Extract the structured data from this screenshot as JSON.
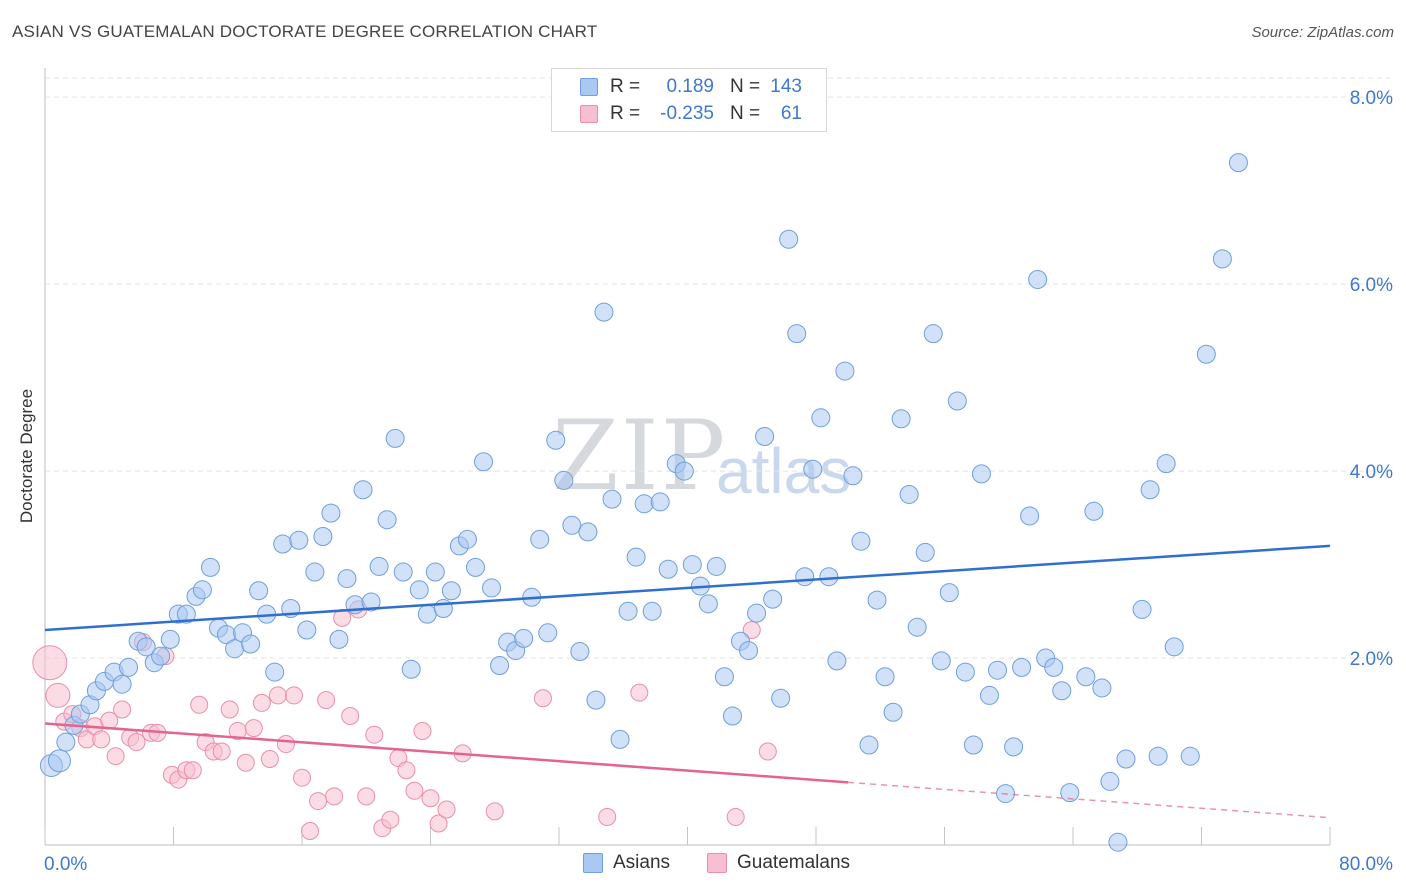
{
  "title": "ASIAN VS GUATEMALAN DOCTORATE DEGREE CORRELATION CHART",
  "source": "Source: ZipAtlas.com",
  "watermark": {
    "zip": "ZIP",
    "atlas": "atlas"
  },
  "legend": {
    "rows": [
      {
        "r_label": "R =",
        "r_value": "0.189",
        "n_label": "N =",
        "n_value": "143",
        "color": "#a9c8f2",
        "stroke": "#6a9ce0"
      },
      {
        "r_label": "R =",
        "r_value": "-0.235",
        "n_label": "N =",
        "n_value": "61",
        "color": "#f7bfd0",
        "stroke": "#e98aa8"
      }
    ]
  },
  "bottom_legend": {
    "series1": "Asians",
    "series2": "Guatemalans"
  },
  "chart_data": {
    "type": "scatter",
    "title": "ASIAN VS GUATEMALAN DOCTORATE DEGREE CORRELATION CHART",
    "xlabel": "",
    "ylabel": "Doctorate Degree",
    "xlim": [
      0,
      80
    ],
    "ylim": [
      0,
      8
    ],
    "x_tick_labels": [
      "0.0%",
      "80.0%"
    ],
    "y_tick_labels": [
      "2.0%",
      "4.0%",
      "6.0%",
      "8.0%"
    ],
    "y_ticks": [
      2,
      4,
      6,
      8
    ],
    "grid": true,
    "legend_position": "top-center",
    "colors": {
      "asians": "#a9c8f2",
      "asians_stroke": "#6f9fdc",
      "asians_line": "#2f6fcf",
      "guatemalans": "#f7bfd0",
      "guatemalans_stroke": "#e88fac",
      "guatemalans_line": "#e4648f",
      "tick_text": "#3f78d0"
    },
    "series": [
      {
        "name": "Asians",
        "trend": {
          "x": [
            0,
            80
          ],
          "y": [
            2.3,
            3.2
          ]
        },
        "points": [
          [
            0.4,
            0.85
          ],
          [
            0.9,
            0.9
          ],
          [
            1.3,
            1.1
          ],
          [
            1.8,
            1.28
          ],
          [
            2.2,
            1.4
          ],
          [
            2.8,
            1.5
          ],
          [
            3.2,
            1.65
          ],
          [
            3.7,
            1.75
          ],
          [
            4.3,
            1.85
          ],
          [
            4.8,
            1.72
          ],
          [
            5.2,
            1.9
          ],
          [
            5.8,
            2.18
          ],
          [
            6.3,
            2.12
          ],
          [
            6.8,
            1.95
          ],
          [
            7.2,
            2.02
          ],
          [
            7.8,
            2.2
          ],
          [
            8.3,
            2.47
          ],
          [
            8.8,
            2.47
          ],
          [
            9.4,
            2.66
          ],
          [
            9.8,
            2.73
          ],
          [
            10.3,
            2.97
          ],
          [
            10.8,
            2.32
          ],
          [
            11.3,
            2.25
          ],
          [
            11.8,
            2.1
          ],
          [
            12.3,
            2.27
          ],
          [
            12.8,
            2.15
          ],
          [
            13.3,
            2.72
          ],
          [
            13.8,
            2.47
          ],
          [
            14.3,
            1.85
          ],
          [
            14.8,
            3.22
          ],
          [
            15.3,
            2.53
          ],
          [
            15.8,
            3.26
          ],
          [
            16.3,
            2.3
          ],
          [
            16.8,
            2.92
          ],
          [
            17.3,
            3.3
          ],
          [
            17.8,
            3.55
          ],
          [
            18.3,
            2.2
          ],
          [
            18.8,
            2.85
          ],
          [
            19.3,
            2.57
          ],
          [
            19.8,
            3.8
          ],
          [
            20.3,
            2.6
          ],
          [
            20.8,
            2.98
          ],
          [
            21.3,
            3.48
          ],
          [
            21.8,
            4.35
          ],
          [
            22.3,
            2.92
          ],
          [
            22.8,
            1.88
          ],
          [
            23.3,
            2.73
          ],
          [
            23.8,
            2.47
          ],
          [
            24.3,
            2.92
          ],
          [
            24.8,
            2.53
          ],
          [
            25.3,
            2.72
          ],
          [
            25.8,
            3.2
          ],
          [
            26.3,
            3.27
          ],
          [
            26.8,
            2.97
          ],
          [
            27.3,
            4.1
          ],
          [
            27.8,
            2.75
          ],
          [
            28.3,
            1.92
          ],
          [
            28.8,
            2.17
          ],
          [
            29.3,
            2.08
          ],
          [
            29.8,
            2.21
          ],
          [
            30.3,
            2.65
          ],
          [
            30.8,
            3.27
          ],
          [
            31.3,
            2.27
          ],
          [
            31.8,
            4.33
          ],
          [
            32.3,
            3.9
          ],
          [
            32.8,
            3.42
          ],
          [
            33.3,
            2.07
          ],
          [
            33.8,
            3.35
          ],
          [
            34.3,
            1.55
          ],
          [
            34.8,
            5.7
          ],
          [
            35.3,
            3.7
          ],
          [
            35.8,
            1.13
          ],
          [
            36.3,
            2.5
          ],
          [
            36.8,
            3.08
          ],
          [
            37.3,
            3.65
          ],
          [
            37.8,
            2.5
          ],
          [
            38.3,
            3.67
          ],
          [
            38.8,
            2.95
          ],
          [
            39.3,
            4.08
          ],
          [
            39.8,
            4.0
          ],
          [
            40.3,
            3.0
          ],
          [
            40.8,
            2.77
          ],
          [
            41.3,
            2.58
          ],
          [
            41.8,
            2.98
          ],
          [
            42.3,
            1.8
          ],
          [
            42.8,
            1.38
          ],
          [
            43.3,
            2.18
          ],
          [
            43.8,
            2.08
          ],
          [
            44.3,
            2.48
          ],
          [
            44.8,
            4.37
          ],
          [
            45.3,
            2.63
          ],
          [
            45.8,
            1.57
          ],
          [
            46.3,
            6.48
          ],
          [
            46.8,
            5.47
          ],
          [
            47.3,
            2.87
          ],
          [
            47.8,
            4.02
          ],
          [
            48.3,
            4.57
          ],
          [
            48.8,
            2.87
          ],
          [
            49.3,
            1.97
          ],
          [
            49.8,
            5.07
          ],
          [
            50.3,
            3.95
          ],
          [
            50.8,
            3.25
          ],
          [
            51.3,
            1.07
          ],
          [
            51.8,
            2.62
          ],
          [
            52.3,
            1.8
          ],
          [
            52.8,
            1.42
          ],
          [
            53.3,
            4.56
          ],
          [
            53.8,
            3.75
          ],
          [
            54.3,
            2.33
          ],
          [
            54.8,
            3.13
          ],
          [
            55.3,
            5.47
          ],
          [
            55.8,
            1.97
          ],
          [
            56.3,
            2.7
          ],
          [
            56.8,
            4.75
          ],
          [
            57.3,
            1.85
          ],
          [
            57.8,
            1.07
          ],
          [
            58.3,
            3.97
          ],
          [
            58.8,
            1.6
          ],
          [
            59.3,
            1.87
          ],
          [
            59.8,
            0.55
          ],
          [
            60.3,
            1.05
          ],
          [
            60.8,
            1.9
          ],
          [
            61.3,
            3.52
          ],
          [
            61.8,
            6.05
          ],
          [
            62.3,
            2.0
          ],
          [
            62.8,
            1.9
          ],
          [
            63.3,
            1.65
          ],
          [
            63.8,
            0.56
          ],
          [
            64.8,
            1.8
          ],
          [
            65.3,
            3.57
          ],
          [
            65.8,
            1.68
          ],
          [
            66.3,
            0.68
          ],
          [
            66.8,
            0.03
          ],
          [
            67.3,
            0.92
          ],
          [
            68.3,
            2.52
          ],
          [
            68.8,
            3.8
          ],
          [
            69.3,
            0.95
          ],
          [
            69.8,
            4.08
          ],
          [
            70.3,
            2.12
          ],
          [
            71.3,
            0.95
          ],
          [
            72.3,
            5.25
          ],
          [
            73.3,
            6.27
          ],
          [
            74.3,
            7.3
          ]
        ]
      },
      {
        "name": "Guatemalans",
        "trend": {
          "x": [
            0,
            50
          ],
          "y": [
            1.3,
            0.67
          ]
        },
        "points": [
          [
            0.3,
            1.95
          ],
          [
            0.8,
            1.6
          ],
          [
            1.2,
            1.32
          ],
          [
            1.7,
            1.4
          ],
          [
            2.2,
            1.25
          ],
          [
            2.6,
            1.13
          ],
          [
            3.1,
            1.27
          ],
          [
            3.5,
            1.13
          ],
          [
            4.0,
            1.33
          ],
          [
            4.4,
            0.95
          ],
          [
            4.8,
            1.45
          ],
          [
            5.3,
            1.15
          ],
          [
            5.7,
            1.1
          ],
          [
            6.1,
            2.17
          ],
          [
            6.6,
            1.2
          ],
          [
            7.0,
            1.2
          ],
          [
            7.5,
            2.02
          ],
          [
            7.9,
            0.75
          ],
          [
            8.3,
            0.7
          ],
          [
            8.8,
            0.8
          ],
          [
            9.2,
            0.8
          ],
          [
            9.6,
            1.5
          ],
          [
            10.0,
            1.1
          ],
          [
            10.5,
            1.0
          ],
          [
            11.0,
            1.0
          ],
          [
            11.5,
            1.45
          ],
          [
            12.0,
            1.22
          ],
          [
            12.5,
            0.88
          ],
          [
            13.0,
            1.25
          ],
          [
            13.5,
            1.52
          ],
          [
            14.0,
            0.92
          ],
          [
            14.5,
            1.6
          ],
          [
            15.0,
            1.08
          ],
          [
            15.5,
            1.6
          ],
          [
            16.0,
            0.72
          ],
          [
            16.5,
            0.15
          ],
          [
            17.0,
            0.47
          ],
          [
            17.5,
            1.55
          ],
          [
            18.0,
            0.52
          ],
          [
            18.5,
            2.43
          ],
          [
            19.0,
            1.38
          ],
          [
            19.5,
            2.52
          ],
          [
            20.0,
            0.52
          ],
          [
            20.5,
            1.18
          ],
          [
            21.0,
            0.18
          ],
          [
            21.5,
            0.27
          ],
          [
            22.0,
            0.93
          ],
          [
            22.5,
            0.8
          ],
          [
            23.0,
            0.58
          ],
          [
            23.5,
            1.22
          ],
          [
            24.0,
            0.5
          ],
          [
            24.5,
            0.23
          ],
          [
            25.0,
            0.38
          ],
          [
            26.0,
            0.98
          ],
          [
            28.0,
            0.36
          ],
          [
            31.0,
            1.57
          ],
          [
            35.0,
            0.3
          ],
          [
            37.0,
            1.63
          ],
          [
            43.0,
            0.3
          ],
          [
            44.0,
            2.3
          ],
          [
            45.0,
            1.0
          ]
        ]
      }
    ]
  }
}
